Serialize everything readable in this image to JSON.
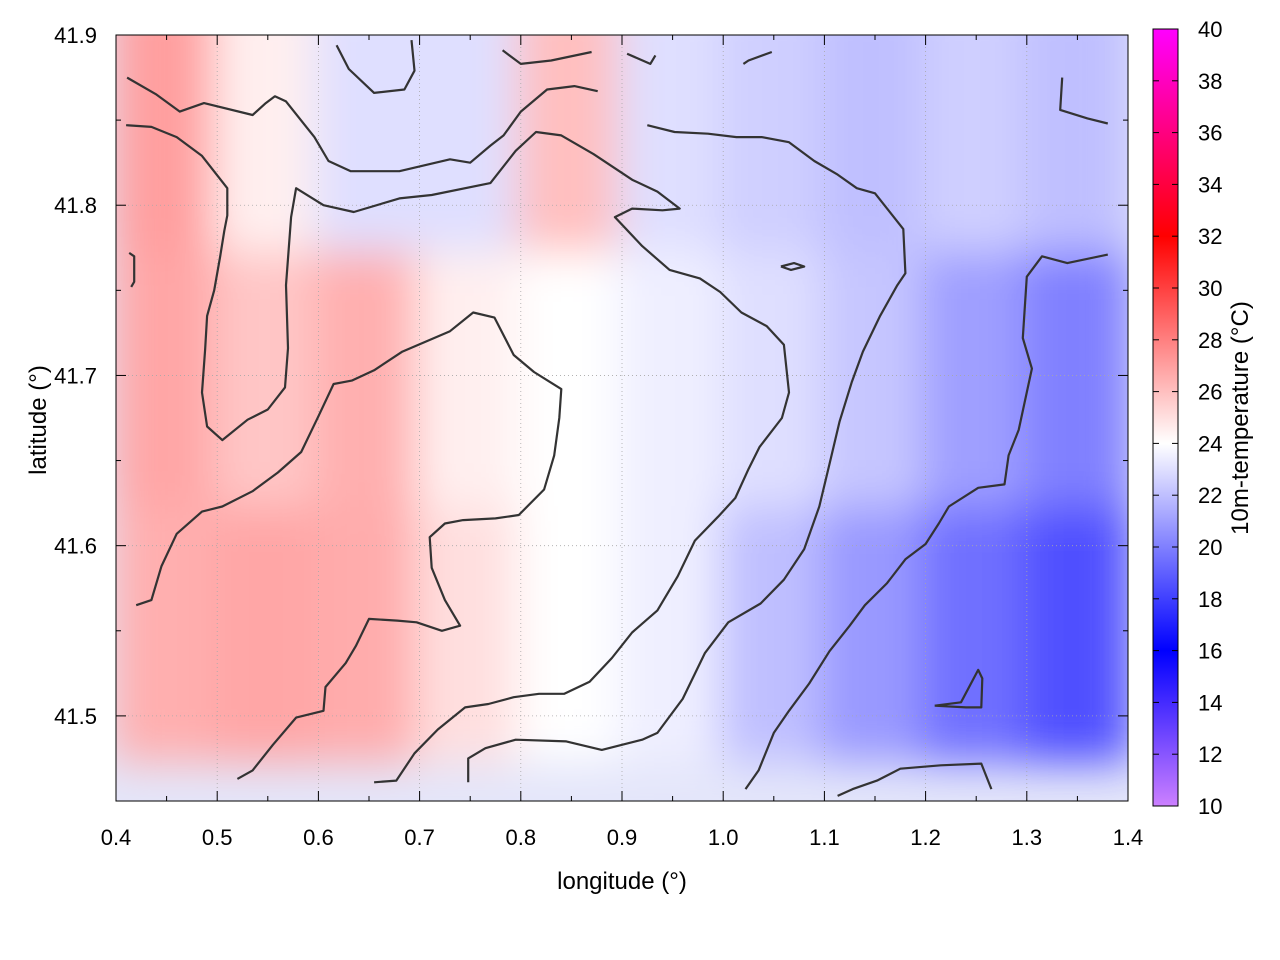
{
  "chart_data": {
    "type": "heatmap",
    "title": "",
    "xlabel": "longitude (°)",
    "ylabel": "latitude (°)",
    "colorbar_label": "10m-temperature (°C)",
    "xlim": [
      0.4,
      1.4
    ],
    "ylim": [
      41.45,
      41.9
    ],
    "x_ticks": [
      "0.4",
      "0.5",
      "0.6",
      "0.7",
      "0.8",
      "0.9",
      "1.0",
      "1.1",
      "1.2",
      "1.3",
      "1.4"
    ],
    "y_ticks": [
      "41.5",
      "41.6",
      "41.7",
      "41.8",
      "41.9"
    ],
    "colorbar_ticks": [
      "10",
      "12",
      "14",
      "16",
      "18",
      "20",
      "22",
      "24",
      "26",
      "28",
      "30",
      "32",
      "34",
      "36",
      "38",
      "40"
    ],
    "colorbar_range": [
      10,
      40
    ],
    "grid": true,
    "temperature_samples": [
      {
        "lon": 0.45,
        "lat": 41.55,
        "t": 26.5
      },
      {
        "lon": 0.55,
        "lat": 41.55,
        "t": 26.8
      },
      {
        "lon": 0.65,
        "lat": 41.55,
        "t": 26.6
      },
      {
        "lon": 0.75,
        "lat": 41.55,
        "t": 25.0
      },
      {
        "lon": 0.85,
        "lat": 41.55,
        "t": 24.0
      },
      {
        "lon": 0.95,
        "lat": 41.55,
        "t": 23.5
      },
      {
        "lon": 1.05,
        "lat": 41.55,
        "t": 22.0
      },
      {
        "lon": 1.15,
        "lat": 41.55,
        "t": 20.8
      },
      {
        "lon": 1.25,
        "lat": 41.55,
        "t": 19.5
      },
      {
        "lon": 1.35,
        "lat": 41.55,
        "t": 18.5
      },
      {
        "lon": 0.45,
        "lat": 41.7,
        "t": 26.8
      },
      {
        "lon": 0.55,
        "lat": 41.7,
        "t": 25.8
      },
      {
        "lon": 0.65,
        "lat": 41.7,
        "t": 26.5
      },
      {
        "lon": 0.75,
        "lat": 41.7,
        "t": 24.5
      },
      {
        "lon": 0.85,
        "lat": 41.7,
        "t": 24.0
      },
      {
        "lon": 0.95,
        "lat": 41.7,
        "t": 23.5
      },
      {
        "lon": 1.05,
        "lat": 41.7,
        "t": 23.0
      },
      {
        "lon": 1.15,
        "lat": 41.7,
        "t": 22.2
      },
      {
        "lon": 1.25,
        "lat": 41.7,
        "t": 21.0
      },
      {
        "lon": 1.35,
        "lat": 41.7,
        "t": 20.0
      },
      {
        "lon": 0.45,
        "lat": 41.85,
        "t": 27.0
      },
      {
        "lon": 0.55,
        "lat": 41.85,
        "t": 24.5
      },
      {
        "lon": 0.65,
        "lat": 41.85,
        "t": 23.0
      },
      {
        "lon": 0.75,
        "lat": 41.85,
        "t": 23.0
      },
      {
        "lon": 0.85,
        "lat": 41.85,
        "t": 26.0
      },
      {
        "lon": 0.95,
        "lat": 41.85,
        "t": 23.0
      },
      {
        "lon": 1.05,
        "lat": 41.85,
        "t": 22.5
      },
      {
        "lon": 1.15,
        "lat": 41.85,
        "t": 22.0
      },
      {
        "lon": 1.25,
        "lat": 41.85,
        "t": 22.5
      },
      {
        "lon": 1.35,
        "lat": 41.85,
        "t": 22.0
      }
    ],
    "contours": [
      [
        [
          0.42,
          41.565
        ],
        [
          0.435,
          41.568
        ],
        [
          0.445,
          41.588
        ],
        [
          0.46,
          41.607
        ],
        [
          0.485,
          41.62
        ],
        [
          0.505,
          41.623
        ],
        [
          0.535,
          41.632
        ],
        [
          0.56,
          41.643
        ],
        [
          0.583,
          41.655
        ],
        [
          0.6,
          41.676
        ],
        [
          0.615,
          41.695
        ],
        [
          0.633,
          41.697
        ],
        [
          0.655,
          41.703
        ],
        [
          0.683,
          41.714
        ],
        [
          0.73,
          41.726
        ],
        [
          0.753,
          41.737
        ],
        [
          0.774,
          41.734
        ],
        [
          0.793,
          41.712
        ],
        [
          0.813,
          41.702
        ],
        [
          0.84,
          41.692
        ],
        [
          0.838,
          41.675
        ],
        [
          0.833,
          41.653
        ],
        [
          0.823,
          41.633
        ],
        [
          0.798,
          41.618
        ],
        [
          0.775,
          41.616
        ],
        [
          0.743,
          41.615
        ],
        [
          0.725,
          41.613
        ],
        [
          0.71,
          41.605
        ],
        [
          0.712,
          41.587
        ],
        [
          0.725,
          41.568
        ],
        [
          0.74,
          41.553
        ],
        [
          0.722,
          41.55
        ],
        [
          0.697,
          41.555
        ],
        [
          0.678,
          41.556
        ],
        [
          0.65,
          41.557
        ],
        [
          0.637,
          41.541
        ],
        [
          0.627,
          41.531
        ],
        [
          0.607,
          41.517
        ],
        [
          0.605,
          41.503
        ],
        [
          0.578,
          41.499
        ],
        [
          0.555,
          41.483
        ],
        [
          0.535,
          41.468
        ],
        [
          0.52,
          41.463
        ]
      ],
      [
        [
          0.411,
          41.875
        ],
        [
          0.44,
          41.865
        ],
        [
          0.463,
          41.855
        ],
        [
          0.487,
          41.86
        ],
        [
          0.535,
          41.853
        ],
        [
          0.548,
          41.86
        ],
        [
          0.557,
          41.864
        ],
        [
          0.568,
          41.861
        ],
        [
          0.596,
          41.84
        ],
        [
          0.61,
          41.826
        ],
        [
          0.632,
          41.82
        ],
        [
          0.68,
          41.82
        ],
        [
          0.73,
          41.827
        ],
        [
          0.75,
          41.825
        ],
        [
          0.77,
          41.835
        ],
        [
          0.783,
          41.841
        ],
        [
          0.8,
          41.855
        ],
        [
          0.826,
          41.868
        ],
        [
          0.853,
          41.87
        ],
        [
          0.876,
          41.867
        ]
      ],
      [
        [
          0.41,
          41.847
        ],
        [
          0.435,
          41.846
        ],
        [
          0.46,
          41.84
        ],
        [
          0.485,
          41.829
        ],
        [
          0.51,
          41.81
        ],
        [
          0.51,
          41.794
        ],
        [
          0.507,
          41.785
        ],
        [
          0.503,
          41.77
        ],
        [
          0.497,
          41.75
        ],
        [
          0.49,
          41.735
        ],
        [
          0.488,
          41.715
        ],
        [
          0.485,
          41.69
        ],
        [
          0.49,
          41.67
        ],
        [
          0.505,
          41.662
        ],
        [
          0.53,
          41.674
        ],
        [
          0.55,
          41.68
        ],
        [
          0.567,
          41.693
        ],
        [
          0.57,
          41.716
        ],
        [
          0.568,
          41.753
        ],
        [
          0.573,
          41.793
        ],
        [
          0.578,
          41.81
        ],
        [
          0.605,
          41.8
        ],
        [
          0.635,
          41.796
        ],
        [
          0.68,
          41.804
        ],
        [
          0.712,
          41.806
        ],
        [
          0.77,
          41.813
        ],
        [
          0.795,
          41.832
        ],
        [
          0.815,
          41.843
        ],
        [
          0.84,
          41.841
        ],
        [
          0.872,
          41.83
        ],
        [
          0.91,
          41.815
        ],
        [
          0.935,
          41.808
        ],
        [
          0.957,
          41.798
        ],
        [
          0.94,
          41.797
        ],
        [
          0.91,
          41.798
        ],
        [
          0.893,
          41.793
        ],
        [
          0.92,
          41.776
        ],
        [
          0.947,
          41.762
        ],
        [
          0.977,
          41.757
        ],
        [
          0.997,
          41.749
        ],
        [
          1.018,
          41.737
        ],
        [
          1.043,
          41.729
        ],
        [
          1.06,
          41.718
        ],
        [
          1.065,
          41.69
        ],
        [
          1.058,
          41.675
        ],
        [
          1.036,
          41.658
        ],
        [
          1.025,
          41.645
        ],
        [
          1.012,
          41.628
        ],
        [
          0.995,
          41.617
        ],
        [
          0.972,
          41.603
        ],
        [
          0.955,
          41.582
        ],
        [
          0.935,
          41.562
        ],
        [
          0.91,
          41.549
        ],
        [
          0.89,
          41.534
        ],
        [
          0.868,
          41.52
        ],
        [
          0.843,
          41.513
        ],
        [
          0.818,
          41.513
        ],
        [
          0.793,
          41.511
        ],
        [
          0.768,
          41.507
        ],
        [
          0.745,
          41.505
        ],
        [
          0.718,
          41.492
        ],
        [
          0.695,
          41.478
        ],
        [
          0.677,
          41.462
        ],
        [
          0.655,
          41.461
        ]
      ],
      [
        [
          0.748,
          41.461
        ],
        [
          0.748,
          41.475
        ],
        [
          0.765,
          41.481
        ],
        [
          0.795,
          41.486
        ],
        [
          0.845,
          41.485
        ],
        [
          0.88,
          41.48
        ],
        [
          0.92,
          41.486
        ],
        [
          0.935,
          41.49
        ],
        [
          0.96,
          41.51
        ],
        [
          0.982,
          41.537
        ],
        [
          1.005,
          41.555
        ],
        [
          1.037,
          41.566
        ],
        [
          1.06,
          41.58
        ],
        [
          1.08,
          41.598
        ],
        [
          1.095,
          41.623
        ],
        [
          1.105,
          41.648
        ],
        [
          1.115,
          41.673
        ],
        [
          1.127,
          41.696
        ],
        [
          1.138,
          41.714
        ],
        [
          1.155,
          41.735
        ],
        [
          1.172,
          41.753
        ],
        [
          1.18,
          41.76
        ],
        [
          1.178,
          41.786
        ],
        [
          1.15,
          41.807
        ],
        [
          1.132,
          41.81
        ],
        [
          1.113,
          41.818
        ],
        [
          1.09,
          41.826
        ],
        [
          1.065,
          41.837
        ],
        [
          1.038,
          41.84
        ],
        [
          1.013,
          41.84
        ],
        [
          0.985,
          41.842
        ],
        [
          0.952,
          41.843
        ],
        [
          0.925,
          41.847
        ]
      ],
      [
        [
          1.022,
          41.457
        ],
        [
          1.035,
          41.468
        ],
        [
          1.05,
          41.49
        ],
        [
          1.065,
          41.503
        ],
        [
          1.085,
          41.519
        ],
        [
          1.105,
          41.538
        ],
        [
          1.125,
          41.553
        ],
        [
          1.14,
          41.565
        ],
        [
          1.162,
          41.578
        ],
        [
          1.18,
          41.592
        ],
        [
          1.2,
          41.601
        ],
        [
          1.213,
          41.613
        ],
        [
          1.223,
          41.623
        ],
        [
          1.252,
          41.634
        ],
        [
          1.278,
          41.636
        ],
        [
          1.282,
          41.653
        ],
        [
          1.292,
          41.668
        ],
        [
          1.305,
          41.704
        ],
        [
          1.296,
          41.722
        ],
        [
          1.3,
          41.758
        ],
        [
          1.315,
          41.77
        ],
        [
          1.34,
          41.766
        ],
        [
          1.38,
          41.771
        ]
      ],
      [
        [
          1.113,
          41.453
        ],
        [
          1.128,
          41.457
        ],
        [
          1.152,
          41.462
        ],
        [
          1.175,
          41.469
        ],
        [
          1.215,
          41.471
        ],
        [
          1.255,
          41.472
        ],
        [
          1.265,
          41.457
        ]
      ],
      [
        [
          1.209,
          41.506
        ],
        [
          1.235,
          41.508
        ],
        [
          1.252,
          41.527
        ],
        [
          1.256,
          41.522
        ],
        [
          1.255,
          41.505
        ],
        [
          1.24,
          41.505
        ],
        [
          1.209,
          41.506
        ]
      ],
      [
        [
          1.057,
          41.764
        ],
        [
          1.07,
          41.766
        ],
        [
          1.08,
          41.764
        ],
        [
          1.067,
          41.762
        ],
        [
          1.057,
          41.764
        ]
      ],
      [
        [
          0.618,
          41.894
        ],
        [
          0.63,
          41.88
        ],
        [
          0.655,
          41.866
        ],
        [
          0.685,
          41.868
        ],
        [
          0.695,
          41.879
        ],
        [
          0.692,
          41.897
        ]
      ],
      [
        [
          0.782,
          41.891
        ],
        [
          0.8,
          41.883
        ],
        [
          0.83,
          41.885
        ],
        [
          0.87,
          41.89
        ]
      ],
      [
        [
          0.905,
          41.889
        ],
        [
          0.928,
          41.883
        ],
        [
          0.933,
          41.888
        ]
      ],
      [
        [
          1.02,
          41.883
        ],
        [
          1.025,
          41.885
        ],
        [
          1.048,
          41.89
        ]
      ],
      [
        [
          1.335,
          41.875
        ],
        [
          1.333,
          41.856
        ],
        [
          1.36,
          41.851
        ],
        [
          1.38,
          41.848
        ]
      ],
      [
        [
          0.413,
          41.772
        ],
        [
          0.418,
          41.77
        ],
        [
          0.418,
          41.755
        ],
        [
          0.415,
          41.752
        ]
      ]
    ]
  }
}
